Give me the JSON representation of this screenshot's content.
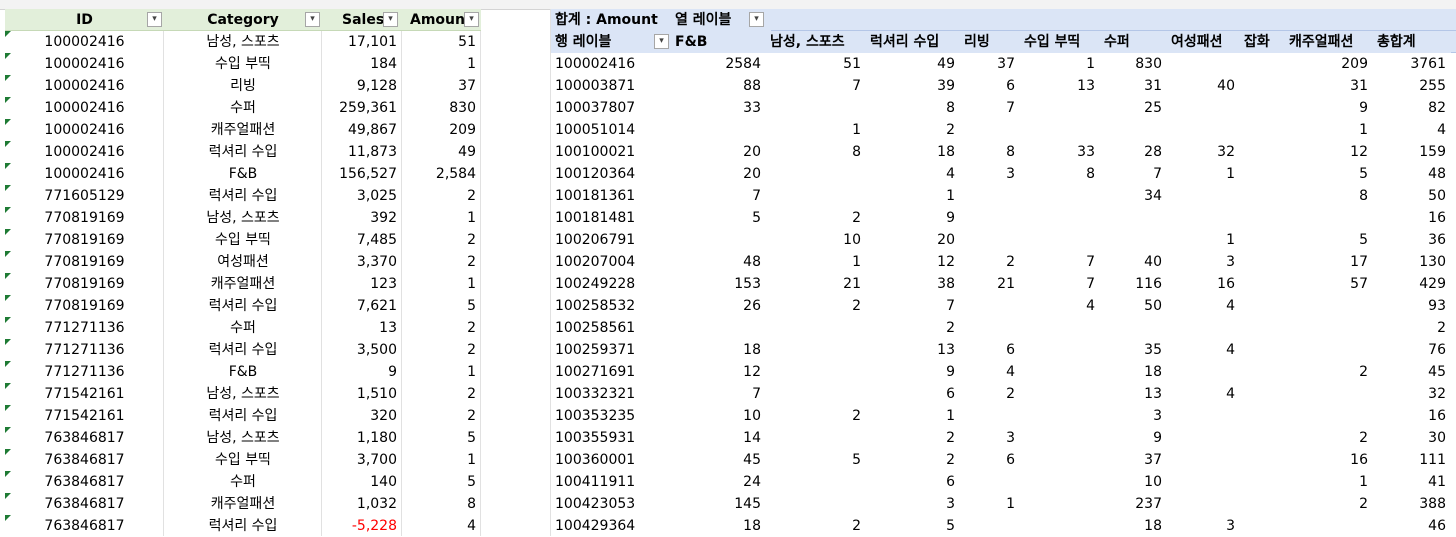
{
  "source_table": {
    "headers": {
      "id": "ID",
      "category": "Category",
      "sales": "Sales",
      "amount": "Amoun"
    },
    "rows": [
      {
        "id": "100002416",
        "category": "남성, 스포츠",
        "sales": "17,101",
        "amount": "51"
      },
      {
        "id": "100002416",
        "category": "수입 부띡",
        "sales": "184",
        "amount": "1"
      },
      {
        "id": "100002416",
        "category": "리빙",
        "sales": "9,128",
        "amount": "37"
      },
      {
        "id": "100002416",
        "category": "수퍼",
        "sales": "259,361",
        "amount": "830"
      },
      {
        "id": "100002416",
        "category": "캐주얼패션",
        "sales": "49,867",
        "amount": "209"
      },
      {
        "id": "100002416",
        "category": "럭셔리 수입",
        "sales": "11,873",
        "amount": "49"
      },
      {
        "id": "100002416",
        "category": "F&B",
        "sales": "156,527",
        "amount": "2,584"
      },
      {
        "id": "771605129",
        "category": "럭셔리 수입",
        "sales": "3,025",
        "amount": "2"
      },
      {
        "id": "770819169",
        "category": "남성, 스포츠",
        "sales": "392",
        "amount": "1"
      },
      {
        "id": "770819169",
        "category": "수입 부띡",
        "sales": "7,485",
        "amount": "2"
      },
      {
        "id": "770819169",
        "category": "여성패션",
        "sales": "3,370",
        "amount": "2"
      },
      {
        "id": "770819169",
        "category": "캐주얼패션",
        "sales": "123",
        "amount": "1"
      },
      {
        "id": "770819169",
        "category": "럭셔리 수입",
        "sales": "7,621",
        "amount": "5"
      },
      {
        "id": "771271136",
        "category": "수퍼",
        "sales": "13",
        "amount": "2"
      },
      {
        "id": "771271136",
        "category": "럭셔리 수입",
        "sales": "3,500",
        "amount": "2"
      },
      {
        "id": "771271136",
        "category": "F&B",
        "sales": "9",
        "amount": "1"
      },
      {
        "id": "771542161",
        "category": "남성, 스포츠",
        "sales": "1,510",
        "amount": "2"
      },
      {
        "id": "771542161",
        "category": "럭셔리 수입",
        "sales": "320",
        "amount": "2"
      },
      {
        "id": "763846817",
        "category": "남성, 스포츠",
        "sales": "1,180",
        "amount": "5"
      },
      {
        "id": "763846817",
        "category": "수입 부띡",
        "sales": "3,700",
        "amount": "1"
      },
      {
        "id": "763846817",
        "category": "수퍼",
        "sales": "140",
        "amount": "5"
      },
      {
        "id": "763846817",
        "category": "캐주얼패션",
        "sales": "1,032",
        "amount": "8"
      },
      {
        "id": "763846817",
        "category": "럭셔리 수입",
        "sales": "-5,228",
        "amount": "4",
        "negative": true
      }
    ]
  },
  "pivot": {
    "value_label": "합계 : Amount",
    "col_labels_title": "열 레이블",
    "row_labels_title": "행 레이블",
    "columns": [
      "F&B",
      "남성, 스포츠",
      "럭셔리 수입",
      "리빙",
      "수입 부띡",
      "수퍼",
      "여성패션",
      "잡화",
      "캐주얼패션",
      "총합계"
    ],
    "rows": [
      {
        "id": "100002416",
        "v": [
          "2584",
          "51",
          "49",
          "37",
          "1",
          "830",
          "",
          "",
          "209",
          "3761"
        ]
      },
      {
        "id": "100003871",
        "v": [
          "88",
          "7",
          "39",
          "6",
          "13",
          "31",
          "40",
          "",
          "31",
          "255"
        ]
      },
      {
        "id": "100037807",
        "v": [
          "33",
          "",
          "8",
          "7",
          "",
          "25",
          "",
          "",
          "9",
          "82"
        ]
      },
      {
        "id": "100051014",
        "v": [
          "",
          "1",
          "2",
          "",
          "",
          "",
          "",
          "",
          "1",
          "4"
        ]
      },
      {
        "id": "100100021",
        "v": [
          "20",
          "8",
          "18",
          "8",
          "33",
          "28",
          "32",
          "",
          "12",
          "159"
        ]
      },
      {
        "id": "100120364",
        "v": [
          "20",
          "",
          "4",
          "3",
          "8",
          "7",
          "1",
          "",
          "5",
          "48"
        ]
      },
      {
        "id": "100181361",
        "v": [
          "7",
          "",
          "1",
          "",
          "",
          "34",
          "",
          "",
          "8",
          "50"
        ]
      },
      {
        "id": "100181481",
        "v": [
          "5",
          "2",
          "9",
          "",
          "",
          "",
          "",
          "",
          "",
          "16"
        ]
      },
      {
        "id": "100206791",
        "v": [
          "",
          "10",
          "20",
          "",
          "",
          "",
          "1",
          "",
          "5",
          "36"
        ]
      },
      {
        "id": "100207004",
        "v": [
          "48",
          "1",
          "12",
          "2",
          "7",
          "40",
          "3",
          "",
          "17",
          "130"
        ]
      },
      {
        "id": "100249228",
        "v": [
          "153",
          "21",
          "38",
          "21",
          "7",
          "116",
          "16",
          "",
          "57",
          "429"
        ]
      },
      {
        "id": "100258532",
        "v": [
          "26",
          "2",
          "7",
          "",
          "4",
          "50",
          "4",
          "",
          "",
          "93"
        ]
      },
      {
        "id": "100258561",
        "v": [
          "",
          "",
          "2",
          "",
          "",
          "",
          "",
          "",
          "",
          "2"
        ]
      },
      {
        "id": "100259371",
        "v": [
          "18",
          "",
          "13",
          "6",
          "",
          "35",
          "4",
          "",
          "",
          "76"
        ]
      },
      {
        "id": "100271691",
        "v": [
          "12",
          "",
          "9",
          "4",
          "",
          "18",
          "",
          "",
          "2",
          "45"
        ]
      },
      {
        "id": "100332321",
        "v": [
          "7",
          "",
          "6",
          "2",
          "",
          "13",
          "4",
          "",
          "",
          "32"
        ]
      },
      {
        "id": "100353235",
        "v": [
          "10",
          "2",
          "1",
          "",
          "",
          "3",
          "",
          "",
          "",
          "16"
        ]
      },
      {
        "id": "100355931",
        "v": [
          "14",
          "",
          "2",
          "3",
          "",
          "9",
          "",
          "",
          "2",
          "30"
        ]
      },
      {
        "id": "100360001",
        "v": [
          "45",
          "5",
          "2",
          "6",
          "",
          "37",
          "",
          "",
          "16",
          "111"
        ]
      },
      {
        "id": "100411911",
        "v": [
          "24",
          "",
          "6",
          "",
          "",
          "10",
          "",
          "",
          "1",
          "41"
        ]
      },
      {
        "id": "100423053",
        "v": [
          "145",
          "",
          "3",
          "1",
          "",
          "237",
          "",
          "",
          "2",
          "388"
        ]
      },
      {
        "id": "100429364",
        "v": [
          "18",
          "2",
          "5",
          "",
          "",
          "18",
          "3",
          "",
          "",
          "46"
        ]
      }
    ]
  }
}
